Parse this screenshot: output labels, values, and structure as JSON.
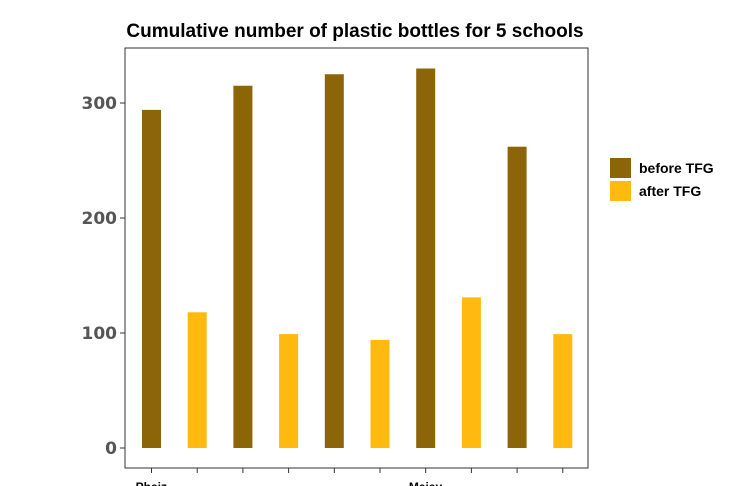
{
  "chart_data": {
    "type": "bar",
    "title": "Cumulative number of plastic bottles for 5 schools",
    "xlabel": "",
    "ylabel": "",
    "categories": [
      "Phaiz",
      "",
      "",
      "Maiay",
      ""
    ],
    "series": [
      {
        "name": "before TFG",
        "color": "#8B6508",
        "values": [
          294,
          315,
          325,
          330,
          262
        ]
      },
      {
        "name": "after TFG",
        "color": "#FFB90F",
        "values": [
          118,
          99,
          94,
          131,
          99
        ]
      }
    ],
    "ylim": [
      0,
      340
    ],
    "yticks": [
      0,
      100,
      200,
      300
    ],
    "yticks_labels": [
      "0",
      "100",
      "200",
      "300"
    ],
    "grid": false,
    "legend_position": "right"
  }
}
